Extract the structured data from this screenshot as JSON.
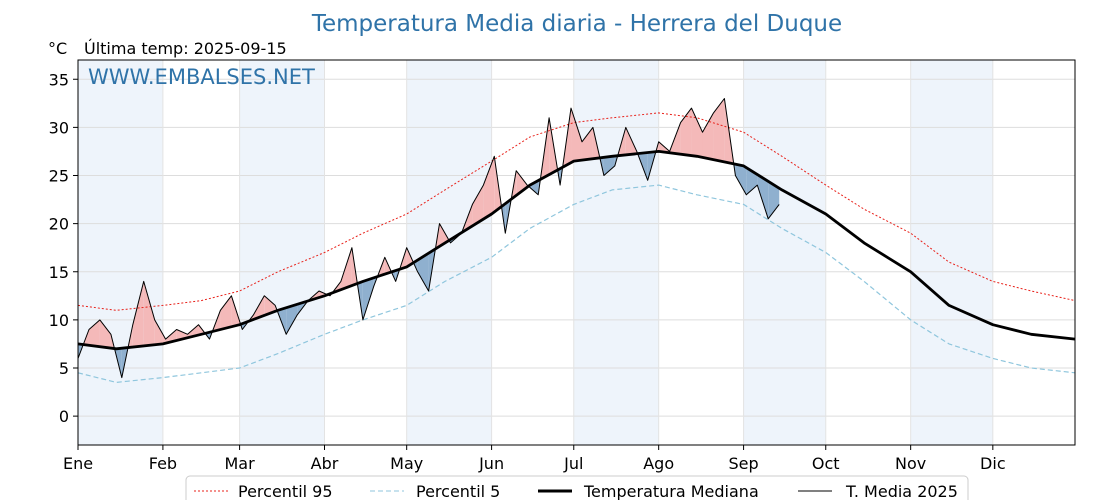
{
  "title": "Temperatura Media diaria - Herrera del Duque",
  "unit_label": "°C",
  "last_temp_label": "Última temp: 2025-09-15",
  "watermark": "WWW.EMBALSES.NET",
  "colors": {
    "title": "#2f73a8",
    "p95": "#e8211a",
    "p5": "#8fc6dd",
    "median": "#000000",
    "media2025": "#000000",
    "warm_fill": "#f4b9b9",
    "cold_fill": "#8fb0cf",
    "month_band": "#eef4fb"
  },
  "chart_data": {
    "type": "line",
    "title": "Temperatura Media diaria - Herrera del Duque",
    "ylabel": "°C",
    "xlabel": "",
    "ylim": [
      -3,
      37
    ],
    "yticks": [
      0,
      5,
      10,
      15,
      20,
      25,
      30,
      35
    ],
    "day_range": [
      1,
      365
    ],
    "month_labels": [
      "Ene",
      "Feb",
      "Mar",
      "Abr",
      "May",
      "Jun",
      "Jul",
      "Ago",
      "Sep",
      "Oct",
      "Nov",
      "Dic"
    ],
    "month_start_days": [
      1,
      32,
      60,
      91,
      121,
      152,
      182,
      213,
      244,
      274,
      305,
      335
    ],
    "grid": true,
    "legend_position": "bottom",
    "series": [
      {
        "name": "Percentil 95",
        "style": "dotted-red",
        "x": [
          1,
          15,
          32,
          46,
          60,
          74,
          91,
          105,
          121,
          135,
          152,
          166,
          182,
          196,
          213,
          227,
          244,
          258,
          274,
          288,
          305,
          319,
          335,
          349,
          365
        ],
        "y": [
          11.5,
          11.0,
          11.5,
          12.0,
          13.0,
          15.0,
          17.0,
          19.0,
          21.0,
          23.5,
          26.5,
          29.0,
          30.5,
          31.0,
          31.5,
          31.0,
          29.5,
          27.0,
          24.0,
          21.5,
          19.0,
          16.0,
          14.0,
          13.0,
          12.0
        ]
      },
      {
        "name": "Percentil 5",
        "style": "dashed-lightblue",
        "x": [
          1,
          15,
          32,
          46,
          60,
          74,
          91,
          105,
          121,
          135,
          152,
          166,
          182,
          196,
          213,
          227,
          244,
          258,
          274,
          288,
          305,
          319,
          335,
          349,
          365
        ],
        "y": [
          4.5,
          3.5,
          4.0,
          4.5,
          5.0,
          6.5,
          8.5,
          10.0,
          11.5,
          14.0,
          16.5,
          19.5,
          22.0,
          23.5,
          24.0,
          23.0,
          22.0,
          19.5,
          17.0,
          14.0,
          10.0,
          7.5,
          6.0,
          5.0,
          4.5
        ]
      },
      {
        "name": "Temperatura Mediana",
        "style": "thick-black",
        "x": [
          1,
          15,
          32,
          46,
          60,
          74,
          91,
          105,
          121,
          135,
          152,
          166,
          182,
          196,
          213,
          227,
          244,
          258,
          274,
          288,
          305,
          319,
          335,
          349,
          365
        ],
        "y": [
          7.5,
          7.0,
          7.5,
          8.5,
          9.5,
          11.0,
          12.5,
          14.0,
          15.5,
          18.0,
          21.0,
          24.0,
          26.5,
          27.0,
          27.5,
          27.0,
          26.0,
          23.5,
          21.0,
          18.0,
          15.0,
          11.5,
          9.5,
          8.5,
          8.0
        ]
      },
      {
        "name": "T. Media 2025",
        "style": "thin-black",
        "x": [
          1,
          5,
          9,
          13,
          17,
          21,
          25,
          29,
          33,
          37,
          41,
          45,
          49,
          53,
          57,
          61,
          65,
          69,
          73,
          77,
          81,
          85,
          89,
          93,
          97,
          101,
          105,
          109,
          113,
          117,
          121,
          125,
          129,
          133,
          137,
          141,
          145,
          149,
          153,
          157,
          161,
          165,
          169,
          173,
          177,
          181,
          185,
          189,
          193,
          197,
          201,
          205,
          209,
          213,
          217,
          221,
          225,
          229,
          233,
          237,
          241,
          245,
          249,
          253,
          257
        ],
        "y": [
          6.0,
          9.0,
          10.0,
          8.5,
          4.0,
          9.5,
          14.0,
          10.0,
          8.0,
          9.0,
          8.5,
          9.5,
          8.0,
          11.0,
          12.5,
          9.0,
          10.5,
          12.5,
          11.5,
          8.5,
          10.5,
          12.0,
          13.0,
          12.5,
          14.0,
          17.5,
          10.0,
          13.5,
          16.5,
          14.0,
          17.5,
          15.0,
          13.0,
          20.0,
          18.0,
          19.0,
          22.0,
          24.0,
          27.0,
          19.0,
          25.5,
          24.0,
          23.0,
          31.0,
          24.0,
          32.0,
          28.5,
          30.0,
          25.0,
          26.0,
          30.0,
          27.5,
          24.5,
          28.5,
          27.5,
          30.5,
          32.0,
          29.5,
          31.5,
          33.0,
          25.0,
          23.0,
          24.0,
          20.5,
          22.0
        ]
      }
    ]
  },
  "legend": {
    "items": [
      {
        "label": "Percentil 95"
      },
      {
        "label": "Percentil 5"
      },
      {
        "label": "Temperatura Mediana"
      },
      {
        "label": "T. Media 2025"
      }
    ]
  }
}
